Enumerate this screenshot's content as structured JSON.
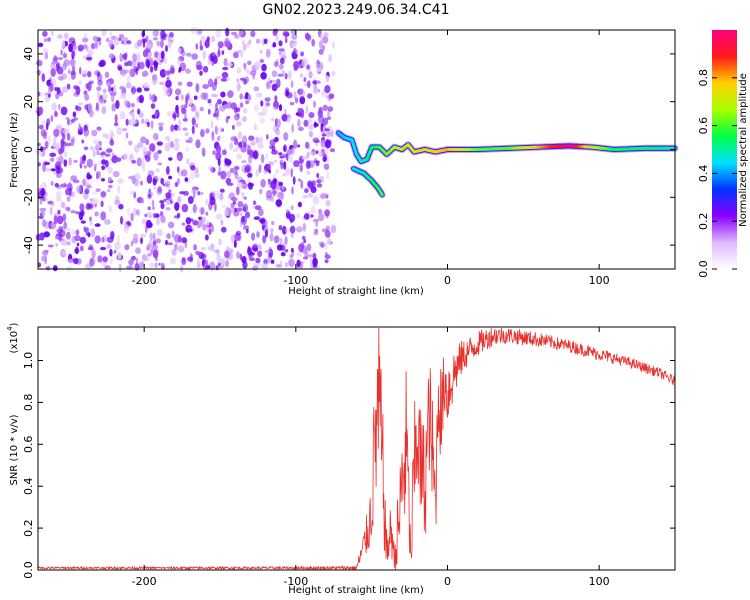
{
  "title": "GN02.2023.249.06.34.C41",
  "colors": {
    "snr_line": "#e8302c",
    "speckle": [
      "#6a00f0",
      "#9a3cf5",
      "#c089f8",
      "#e1c7fb"
    ],
    "colormap": [
      "#ffffff",
      "#e0b8ff",
      "#8800ff",
      "#0033ff",
      "#00e0ff",
      "#00ff44",
      "#aaff00",
      "#ffd000",
      "#ff1a1a",
      "#ff0080"
    ]
  },
  "chart_data": [
    {
      "type": "heatmap",
      "xlabel": "Height of straight line (km)",
      "ylabel": "Frequency (Hz)",
      "xlim": [
        -270,
        150
      ],
      "ylim": [
        -50,
        50
      ],
      "xticks": [
        -200,
        -100,
        0,
        100
      ],
      "yticks": [
        -40,
        -20,
        0,
        20,
        40
      ],
      "grid": false,
      "colorbar": {
        "label": "Normalized spectral amplitude",
        "range": [
          0.0,
          1.0
        ],
        "ticks": [
          "0.0",
          "0.2",
          "0.4",
          "0.6",
          "0.8"
        ]
      },
      "noise_region": {
        "x_range": [
          -270,
          -75
        ],
        "freq_range": [
          -50,
          50
        ],
        "amplitude_range": [
          0.05,
          0.2
        ]
      },
      "signal_track": [
        {
          "x": -72,
          "freq": 7
        },
        {
          "x": -68,
          "freq": 5
        },
        {
          "x": -63,
          "freq": 4
        },
        {
          "x": -60,
          "freq": -2
        },
        {
          "x": -57,
          "freq": -5
        },
        {
          "x": -53,
          "freq": -4
        },
        {
          "x": -50,
          "freq": 1
        },
        {
          "x": -45,
          "freq": 1
        },
        {
          "x": -40,
          "freq": -2
        },
        {
          "x": -35,
          "freq": 1
        },
        {
          "x": -30,
          "freq": 0
        },
        {
          "x": -26,
          "freq": 2
        },
        {
          "x": -22,
          "freq": -1
        },
        {
          "x": -15,
          "freq": 0
        },
        {
          "x": -8,
          "freq": -1
        },
        {
          "x": 0,
          "freq": 0
        },
        {
          "x": 20,
          "freq": 0
        },
        {
          "x": 40,
          "freq": 0.5
        },
        {
          "x": 60,
          "freq": 1
        },
        {
          "x": 80,
          "freq": 1.5
        },
        {
          "x": 95,
          "freq": 1
        },
        {
          "x": 110,
          "freq": 0
        },
        {
          "x": 130,
          "freq": 0.5
        },
        {
          "x": 150,
          "freq": 0.5
        }
      ],
      "signal_branch": [
        {
          "x": -62,
          "freq": -8
        },
        {
          "x": -55,
          "freq": -10
        },
        {
          "x": -50,
          "freq": -13
        },
        {
          "x": -46,
          "freq": -16
        },
        {
          "x": -43,
          "freq": -19
        }
      ],
      "signal_amplitude": [
        {
          "x": -75,
          "a": 0.4
        },
        {
          "x": -55,
          "a": 0.5
        },
        {
          "x": -30,
          "a": 0.7
        },
        {
          "x": 0,
          "a": 0.8
        },
        {
          "x": 20,
          "a": 0.6
        },
        {
          "x": 40,
          "a": 0.6
        },
        {
          "x": 60,
          "a": 0.8
        },
        {
          "x": 80,
          "a": 1.0
        },
        {
          "x": 95,
          "a": 0.7
        },
        {
          "x": 110,
          "a": 0.55
        },
        {
          "x": 150,
          "a": 0.5
        }
      ]
    },
    {
      "type": "line",
      "xlabel": "Height of straight line (km)",
      "ylabel": "SNR (10 * v/v)",
      "y_multiplier": "(x10",
      "y_multiplier_exp": "4",
      "y_multiplier_close": ")",
      "xlim": [
        -270,
        150
      ],
      "ylim": [
        0.0,
        1.16
      ],
      "xticks": [
        -200,
        -100,
        0,
        100
      ],
      "yticks": [
        "0.0",
        "0.2",
        "0.4",
        "0.6",
        "0.8",
        "1.0"
      ],
      "grid": false,
      "series": [
        {
          "x": [
            -270,
            -200,
            -100,
            -60,
            -58,
            -55,
            -52,
            -50,
            -48,
            -45,
            -43,
            -41,
            -40,
            -39,
            -37,
            -35,
            -33,
            -30,
            -27,
            -25,
            -24,
            -23,
            -20,
            -18,
            -15,
            -12,
            -10,
            -8,
            -6,
            -4,
            -2,
            0,
            5,
            10,
            20,
            30,
            40,
            60,
            80,
            100,
            120,
            140,
            150
          ],
          "y": [
            0.01,
            0.01,
            0.01,
            0.01,
            0.05,
            0.12,
            0.2,
            0.3,
            0.6,
            0.8,
            0.5,
            0.2,
            0.08,
            0.12,
            0.2,
            0.05,
            0.15,
            0.4,
            0.6,
            0.2,
            0.05,
            0.3,
            0.7,
            0.5,
            0.4,
            0.75,
            0.55,
            0.3,
            0.85,
            0.72,
            0.9,
            0.85,
            0.95,
            1.02,
            1.08,
            1.12,
            1.12,
            1.1,
            1.07,
            1.03,
            0.99,
            0.94,
            0.9
          ],
          "spread": [
            0.005,
            0.005,
            0.006,
            0.01,
            0.04,
            0.08,
            0.12,
            0.18,
            0.35,
            0.45,
            0.35,
            0.15,
            0.08,
            0.1,
            0.15,
            0.05,
            0.2,
            0.3,
            0.4,
            0.15,
            0.05,
            0.3,
            0.35,
            0.3,
            0.3,
            0.3,
            0.3,
            0.25,
            0.2,
            0.25,
            0.15,
            0.18,
            0.12,
            0.08,
            0.06,
            0.05,
            0.04,
            0.035,
            0.03,
            0.03,
            0.025,
            0.025,
            0.025
          ]
        }
      ]
    }
  ]
}
